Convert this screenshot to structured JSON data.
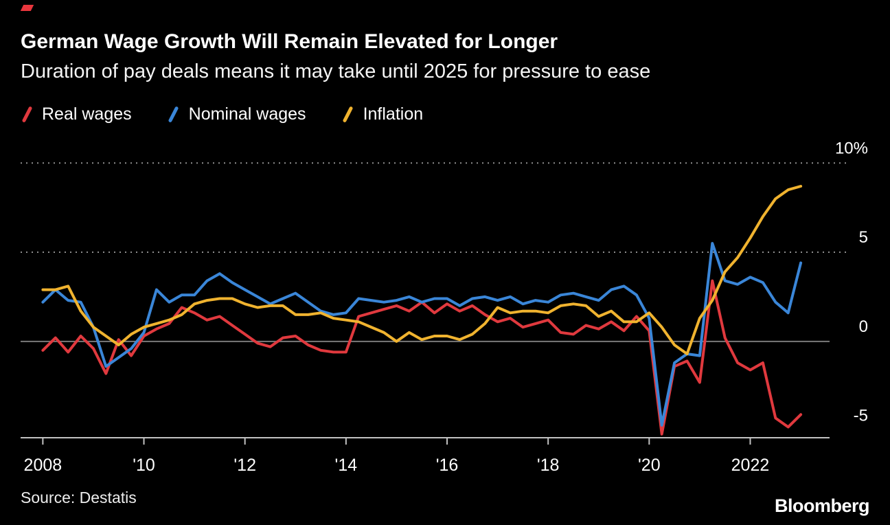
{
  "page": {
    "title": "German Wage Growth Will Remain Elevated for Longer",
    "subtitle": "Duration of pay deals means it may take until 2025 for pressure to ease",
    "source": "Source: Destatis",
    "brand": "Bloomberg",
    "accent_color": "#e8363d",
    "background_color": "#000000"
  },
  "legend": [
    {
      "label": "Real wages",
      "color": "#e0393e"
    },
    {
      "label": "Nominal wages",
      "color": "#3a86d8"
    },
    {
      "label": "Inflation",
      "color": "#f0b32f"
    }
  ],
  "chart_data": {
    "type": "line",
    "title": "German Wage Growth Will Remain Elevated for Longer",
    "subtitle": "Duration of pay deals means it may take until 2025 for pressure to ease",
    "x_unit": "year (quarterly points)",
    "y_unit": "percent, year-over-year",
    "x_start": 2008.0,
    "x_step": 0.25,
    "xlim": [
      2007.56,
      2023.57
    ],
    "ylim": [
      -5.4,
      11.05
    ],
    "x_ticks": [
      {
        "value": 2008,
        "label": "2008"
      },
      {
        "value": 2010,
        "label": "'10"
      },
      {
        "value": 2012,
        "label": "'12"
      },
      {
        "value": 2014,
        "label": "'14"
      },
      {
        "value": 2016,
        "label": "'16"
      },
      {
        "value": 2018,
        "label": "'18"
      },
      {
        "value": 2020,
        "label": "'20"
      },
      {
        "value": 2022,
        "label": "2022"
      }
    ],
    "y_ticks": [
      {
        "value": 10,
        "label": "10%",
        "grid": "dotted"
      },
      {
        "value": 5,
        "label": "5",
        "grid": "dotted"
      },
      {
        "value": 0,
        "label": "0",
        "grid": "solid"
      },
      {
        "value": -5,
        "label": "-5",
        "grid": "none"
      }
    ],
    "grid_color": "#8f8f8f",
    "zero_line_color": "#7a7a7a",
    "axis_color": "#c2c2c2",
    "series": [
      {
        "name": "Real wages",
        "color": "#e0393e",
        "values": [
          -0.5,
          0.2,
          -0.6,
          0.3,
          -0.4,
          -1.8,
          0.1,
          -0.8,
          0.3,
          0.7,
          1.0,
          1.9,
          1.6,
          1.2,
          1.4,
          0.9,
          0.4,
          -0.1,
          -0.3,
          0.2,
          0.3,
          -0.2,
          -0.5,
          -0.6,
          -0.6,
          1.4,
          1.6,
          1.8,
          2.0,
          1.7,
          2.2,
          1.6,
          2.1,
          1.7,
          2.0,
          1.5,
          1.1,
          1.3,
          0.8,
          1.0,
          1.2,
          0.5,
          0.4,
          0.9,
          0.7,
          1.1,
          0.6,
          1.4,
          0.6,
          -5.2,
          -1.4,
          -1.1,
          -2.3,
          3.4,
          0.2,
          -1.2,
          -1.6,
          -1.2,
          -4.3,
          -4.8,
          -4.1
        ]
      },
      {
        "name": "Nominal wages",
        "color": "#3a86d8",
        "values": [
          2.2,
          2.9,
          2.3,
          2.2,
          0.8,
          -1.4,
          -0.9,
          -0.4,
          0.5,
          2.9,
          2.2,
          2.6,
          2.6,
          3.4,
          3.8,
          3.3,
          2.9,
          2.5,
          2.1,
          2.4,
          2.7,
          2.2,
          1.7,
          1.5,
          1.6,
          2.4,
          2.3,
          2.2,
          2.3,
          2.5,
          2.2,
          2.4,
          2.4,
          2.0,
          2.4,
          2.5,
          2.3,
          2.5,
          2.1,
          2.3,
          2.2,
          2.6,
          2.7,
          2.5,
          2.3,
          2.9,
          3.1,
          2.6,
          1.3,
          -4.7,
          -1.2,
          -0.7,
          -0.8,
          5.5,
          3.4,
          3.2,
          3.6,
          3.3,
          2.2,
          1.6,
          4.4
        ]
      },
      {
        "name": "Inflation",
        "color": "#f0b32f",
        "values": [
          2.9,
          2.9,
          3.1,
          1.7,
          0.8,
          0.3,
          -0.2,
          0.4,
          0.8,
          1.0,
          1.2,
          1.5,
          2.1,
          2.3,
          2.4,
          2.4,
          2.1,
          1.9,
          2.0,
          2.0,
          1.5,
          1.5,
          1.6,
          1.3,
          1.2,
          1.1,
          0.8,
          0.5,
          0.0,
          0.5,
          0.1,
          0.3,
          0.3,
          0.1,
          0.4,
          1.0,
          1.9,
          1.6,
          1.7,
          1.7,
          1.6,
          2.0,
          2.1,
          2.0,
          1.4,
          1.7,
          1.1,
          1.1,
          1.6,
          0.8,
          -0.2,
          -0.7,
          1.3,
          2.3,
          3.9,
          4.7,
          5.8,
          7.0,
          8.0,
          8.5,
          8.7
        ]
      }
    ],
    "legend_position": "top-left",
    "y_axis_side": "right"
  }
}
